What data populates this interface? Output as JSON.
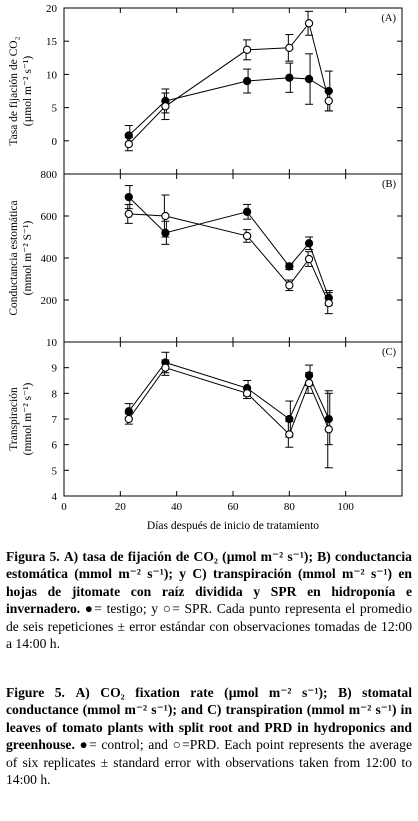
{
  "chart_data": [
    {
      "type": "line",
      "panel_tag": "(A)",
      "ylabel_line1": "Tasa de fijación de CO₂",
      "ylabel_line2": "(µmol m⁻² s⁻¹)",
      "ylim": [
        -5,
        20
      ],
      "yticks": [
        0,
        5,
        10,
        15,
        20
      ],
      "x": [
        23,
        36,
        65,
        80,
        87,
        94
      ],
      "series": [
        {
          "marker": "filled-circle",
          "values": [
            0.8,
            6.0,
            9.0,
            9.5,
            9.3,
            7.5
          ],
          "errors": [
            1.5,
            1.8,
            1.8,
            2.2,
            3.8,
            3.0
          ]
        },
        {
          "marker": "open-circle",
          "values": [
            -0.5,
            5.2,
            13.7,
            14.0,
            17.7,
            6.0
          ],
          "errors": [
            1.0,
            2.0,
            1.5,
            2.0,
            1.8,
            1.5
          ]
        }
      ]
    },
    {
      "type": "line",
      "panel_tag": "(B)",
      "ylabel_line1": "Conductancia estomática",
      "ylabel_line2": "(mmol m⁻² S⁻¹)",
      "ylim": [
        0,
        800
      ],
      "yticks": [
        200,
        400,
        600,
        800
      ],
      "x": [
        23,
        36,
        65,
        80,
        87,
        94
      ],
      "series": [
        {
          "marker": "filled-circle",
          "values": [
            690,
            520,
            620,
            360,
            470,
            210
          ],
          "errors": [
            55,
            55,
            35,
            15,
            30,
            35
          ]
        },
        {
          "marker": "open-circle",
          "values": [
            610,
            600,
            505,
            270,
            395,
            185
          ],
          "errors": [
            45,
            100,
            30,
            25,
            35,
            50
          ]
        }
      ]
    },
    {
      "type": "line",
      "panel_tag": "(C)",
      "ylabel_line1": "Transpiración",
      "ylabel_line2": "(mmol m⁻² s⁻¹)",
      "ylim": [
        4,
        10
      ],
      "yticks": [
        4,
        5,
        6,
        7,
        8,
        9,
        10
      ],
      "x": [
        23,
        36,
        65,
        80,
        87,
        94
      ],
      "xlim": [
        0,
        120
      ],
      "xticks": [
        0,
        20,
        40,
        60,
        80,
        100
      ],
      "xlabel": "Días después de inicio de tratamiento",
      "series": [
        {
          "marker": "filled-circle",
          "values": [
            7.3,
            9.2,
            8.2,
            7.0,
            8.7,
            7.0
          ],
          "errors": [
            0.3,
            0.4,
            0.3,
            0.7,
            0.4,
            1.0
          ]
        },
        {
          "marker": "open-circle",
          "values": [
            7.0,
            9.0,
            8.0,
            6.4,
            8.4,
            6.6
          ],
          "errors": [
            0.2,
            0.3,
            0.2,
            0.5,
            0.4,
            1.5
          ]
        }
      ]
    }
  ],
  "caption_es": {
    "lead": "Figura 5.",
    "bold": "A) tasa de fijación de CO₂ (µmol m⁻² s⁻¹); B) conductancia estomática (mmol m⁻² s⁻¹); y C) transpiración (mmol m⁻² s⁻¹) en hojas de jitomate con raíz dividida y SPR en hidroponía e invernadero.",
    "rest": "●= testigo; y ○= SPR. Cada punto representa el promedio de seis repeticiones ± error estándar con observaciones tomadas de 12:00 a 14:00 h."
  },
  "caption_en": {
    "lead": "Figure 5.",
    "bold": "A) CO₂ fixation rate (µmol m⁻² s⁻¹); B) stomatal conductance (mmol m⁻² s⁻¹); and C) transpiration (mmol m⁻² s⁻¹) in leaves of tomato plants with split root and PRD in hydroponics and greenhouse.",
    "rest": "●= control; and ○=PRD. Each point represents the average of six replicates ± standard error with observations taken from 12:00 to 14:00 h."
  }
}
